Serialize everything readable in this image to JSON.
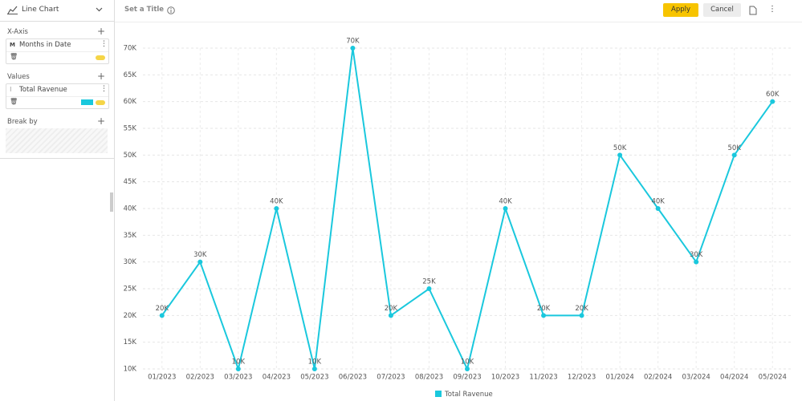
{
  "sidebar": {
    "chart_type": "Line Chart",
    "x_axis": {
      "title": "X-Axis",
      "badge": "M",
      "field": "Months in Date"
    },
    "values": {
      "title": "Values",
      "field": "Total Ravenue"
    },
    "break_by": {
      "title": "Break by"
    }
  },
  "toolbar": {
    "title_placeholder": "Set a Title",
    "apply": "Apply",
    "cancel": "Cancel"
  },
  "chart_data": {
    "type": "line",
    "categories": [
      "01/2023",
      "02/2023",
      "03/2023",
      "04/2023",
      "05/2023",
      "06/2023",
      "07/2023",
      "08/2023",
      "09/2023",
      "10/2023",
      "11/2023",
      "12/2023",
      "01/2024",
      "02/2024",
      "03/2024",
      "04/2024",
      "05/2024"
    ],
    "series": [
      {
        "name": "Total Ravenue",
        "color": "#1ac8dd",
        "values": [
          20000,
          30000,
          10000,
          40000,
          10000,
          70000,
          20000,
          25000,
          10000,
          40000,
          20000,
          20000,
          50000,
          40000,
          30000,
          50000,
          60000
        ],
        "value_labels": [
          "20K",
          "30K",
          "10K",
          "40K",
          "10K",
          "70K",
          "20K",
          "25K",
          "10K",
          "40K",
          "20K",
          "20K",
          "50K",
          "40K",
          "30K",
          "50K",
          "60K"
        ]
      }
    ],
    "ylim": [
      10000,
      70000
    ],
    "yticks": [
      {
        "value": 10000,
        "label": "10K"
      },
      {
        "value": 15000,
        "label": "15K"
      },
      {
        "value": 20000,
        "label": "20K"
      },
      {
        "value": 25000,
        "label": "25K"
      },
      {
        "value": 30000,
        "label": "30K"
      },
      {
        "value": 35000,
        "label": "35K"
      },
      {
        "value": 40000,
        "label": "40K"
      },
      {
        "value": 45000,
        "label": "45K"
      },
      {
        "value": 50000,
        "label": "50K"
      },
      {
        "value": 55000,
        "label": "55K"
      },
      {
        "value": 60000,
        "label": "60K"
      },
      {
        "value": 65000,
        "label": "65K"
      },
      {
        "value": 70000,
        "label": "70K"
      }
    ],
    "grid": true,
    "legend": "bottom"
  }
}
